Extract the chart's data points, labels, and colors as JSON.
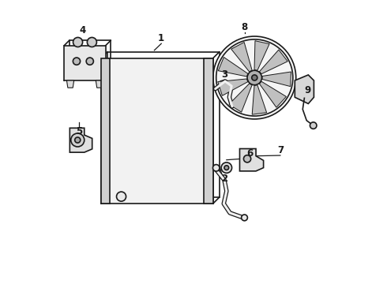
{
  "bg_color": "#ffffff",
  "line_color": "#1a1a1a",
  "default_lw": 1.2
}
